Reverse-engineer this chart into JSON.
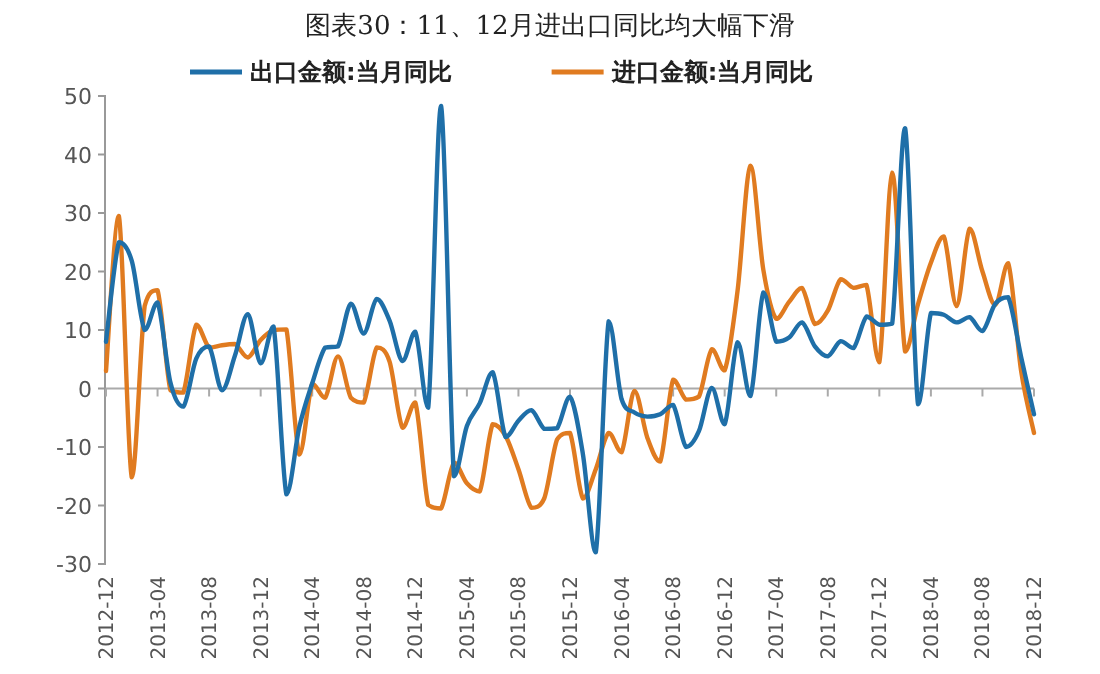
{
  "chart_data": {
    "type": "line",
    "title": "图表30：11、12月进出口同比均大幅下滑",
    "categories": [
      "2012-12",
      null,
      null,
      null,
      "2013-04",
      null,
      null,
      null,
      "2013-08",
      null,
      null,
      null,
      "2013-12",
      null,
      null,
      null,
      "2014-04",
      null,
      null,
      null,
      "2014-08",
      null,
      null,
      null,
      "2014-12",
      null,
      null,
      null,
      "2015-04",
      null,
      null,
      null,
      "2015-08",
      null,
      null,
      null,
      "2015-12",
      null,
      null,
      null,
      "2016-04",
      null,
      null,
      null,
      "2016-08",
      null,
      null,
      null,
      "2016-12",
      null,
      null,
      null,
      "2017-04",
      null,
      null,
      null,
      "2017-08",
      null,
      null,
      null,
      "2017-12",
      null,
      null,
      null,
      "2018-04",
      null,
      null,
      null,
      "2018-08",
      null,
      null,
      null,
      "2018-12"
    ],
    "series": [
      {
        "name": "出口金额:当月同比",
        "color": "#1f6fa8",
        "values": [
          8,
          25,
          21.8,
          10,
          14.7,
          1,
          -3.1,
          5.1,
          7.2,
          -0.3,
          5.6,
          12.7,
          4.3,
          10.6,
          -18.1,
          -6.6,
          0.9,
          7,
          7.2,
          14.5,
          9.4,
          15.3,
          11.6,
          4.7,
          9.7,
          -3.3,
          48.3,
          -15,
          -6.4,
          -2.5,
          2.8,
          -8.3,
          -5.5,
          -3.7,
          -6.9,
          -6.8,
          -1.4,
          -11.2,
          -28,
          11.5,
          -1.8,
          -4.1,
          -4.8,
          -4.4,
          -2.8,
          -10,
          -7.3,
          0.1,
          -6.1,
          7.9,
          -1.3,
          16.4,
          8,
          8.7,
          11.3,
          7.2,
          5.5,
          8.1,
          6.9,
          12.3,
          10.9,
          11.1,
          44.5,
          -2.7,
          12.9,
          12.6,
          11.3,
          12.2,
          9.8,
          14.5,
          15.6,
          5.4,
          -4.4
        ]
      },
      {
        "name": "进口金额:当月同比",
        "color": "#e07b20",
        "values": [
          3,
          29.5,
          -15.2,
          14.1,
          16.8,
          -0.3,
          -0.7,
          10.9,
          7,
          7.4,
          7.6,
          5.3,
          8.3,
          10,
          10.1,
          -11.3,
          0.8,
          -1.6,
          5.5,
          -1.6,
          -2.4,
          7,
          4.6,
          -6.7,
          -2.4,
          -19.9,
          -20.5,
          -12.7,
          -16.2,
          -17.6,
          -6.1,
          -8.1,
          -13.8,
          -20.4,
          -18.8,
          -8.7,
          -7.6,
          -18.8,
          -13.8,
          -7.6,
          -10.9,
          -0.4,
          -8.4,
          -12.5,
          1.5,
          -1.9,
          -1.4,
          6.7,
          3.1,
          16.7,
          38.1,
          20.3,
          11.9,
          14.8,
          17.2,
          11,
          13.3,
          18.7,
          17.2,
          17.7,
          4.5,
          36.9,
          6.3,
          14.4,
          21.5,
          26,
          14.1,
          27.3,
          20,
          14.3,
          21.4,
          3,
          -7.6
        ]
      }
    ],
    "ylim": [
      -30,
      50
    ],
    "yticks": [
      -30,
      -20,
      -10,
      0,
      10,
      20,
      30,
      40,
      50
    ],
    "legend": "top"
  }
}
